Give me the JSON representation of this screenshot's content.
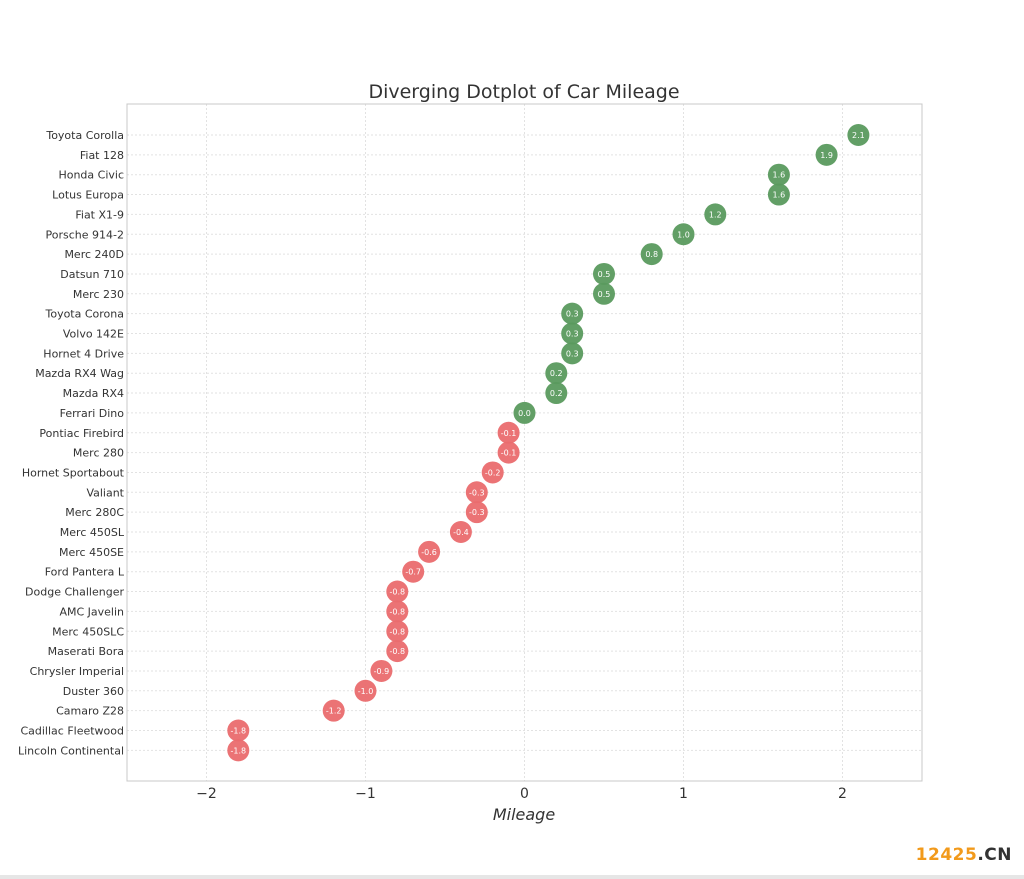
{
  "watermark": {
    "number": "12425",
    "tld": ".CN"
  },
  "colors": {
    "positive": "#5a9a5e",
    "negative": "#ea6b6e",
    "grid": "#e2e2e2",
    "axis": "#c8c8c8",
    "text": "#333333"
  },
  "chart_data": {
    "type": "scatter",
    "title": "Diverging Dotplot of Car Mileage",
    "xlabel": "Mileage",
    "ylabel": "",
    "xlim": [
      -2.5,
      2.5
    ],
    "xticks": [
      -2,
      -1,
      0,
      1,
      2
    ],
    "xtick_labels": [
      "−2",
      "−1",
      "0",
      "1",
      "2"
    ],
    "grid": true,
    "points": [
      {
        "name": "Toyota Corolla",
        "value": 2.1,
        "label": "2.1"
      },
      {
        "name": "Fiat 128",
        "value": 1.9,
        "label": "1.9"
      },
      {
        "name": "Honda Civic",
        "value": 1.6,
        "label": "1.6"
      },
      {
        "name": "Lotus Europa",
        "value": 1.6,
        "label": "1.6"
      },
      {
        "name": "Fiat X1-9",
        "value": 1.2,
        "label": "1.2"
      },
      {
        "name": "Porsche 914-2",
        "value": 1.0,
        "label": "1.0"
      },
      {
        "name": "Merc 240D",
        "value": 0.8,
        "label": "0.8"
      },
      {
        "name": "Datsun 710",
        "value": 0.5,
        "label": "0.5"
      },
      {
        "name": "Merc 230",
        "value": 0.5,
        "label": "0.5"
      },
      {
        "name": "Toyota Corona",
        "value": 0.3,
        "label": "0.3"
      },
      {
        "name": "Volvo 142E",
        "value": 0.3,
        "label": "0.3"
      },
      {
        "name": "Hornet 4 Drive",
        "value": 0.3,
        "label": "0.3"
      },
      {
        "name": "Mazda RX4 Wag",
        "value": 0.2,
        "label": "0.2"
      },
      {
        "name": "Mazda RX4",
        "value": 0.2,
        "label": "0.2"
      },
      {
        "name": "Ferrari Dino",
        "value": 0.0,
        "label": "0.0"
      },
      {
        "name": "Pontiac Firebird",
        "value": -0.1,
        "label": "-0.1"
      },
      {
        "name": "Merc 280",
        "value": -0.1,
        "label": "-0.1"
      },
      {
        "name": "Hornet Sportabout",
        "value": -0.2,
        "label": "-0.2"
      },
      {
        "name": "Valiant",
        "value": -0.3,
        "label": "-0.3"
      },
      {
        "name": "Merc 280C",
        "value": -0.3,
        "label": "-0.3"
      },
      {
        "name": "Merc 450SL",
        "value": -0.4,
        "label": "-0.4"
      },
      {
        "name": "Merc 450SE",
        "value": -0.6,
        "label": "-0.6"
      },
      {
        "name": "Ford Pantera L",
        "value": -0.7,
        "label": "-0.7"
      },
      {
        "name": "Dodge Challenger",
        "value": -0.8,
        "label": "-0.8"
      },
      {
        "name": "AMC Javelin",
        "value": -0.8,
        "label": "-0.8"
      },
      {
        "name": "Merc 450SLC",
        "value": -0.8,
        "label": "-0.8"
      },
      {
        "name": "Maserati Bora",
        "value": -0.8,
        "label": "-0.8"
      },
      {
        "name": "Chrysler Imperial",
        "value": -0.9,
        "label": "-0.9"
      },
      {
        "name": "Duster 360",
        "value": -1.0,
        "label": "-1.0"
      },
      {
        "name": "Camaro Z28",
        "value": -1.2,
        "label": "-1.2"
      },
      {
        "name": "Cadillac Fleetwood",
        "value": -1.8,
        "label": "-1.8"
      },
      {
        "name": "Lincoln Continental",
        "value": -1.8,
        "label": "-1.8"
      }
    ]
  }
}
